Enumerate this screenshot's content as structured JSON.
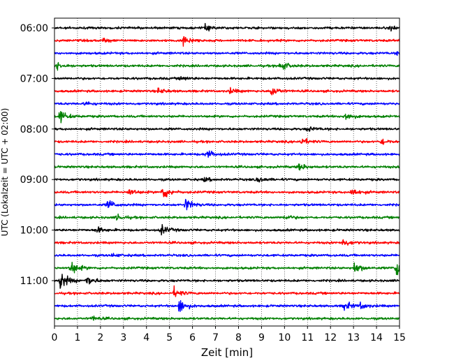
{
  "chart_data": {
    "type": "line",
    "subtype": "helicorder",
    "xlabel": "Zeit  [min]",
    "ylabel": "UTC (Lokalzeit = UTC + 02:00)",
    "xlim": [
      0,
      15
    ],
    "x_ticks": [
      0,
      1,
      2,
      3,
      4,
      5,
      6,
      7,
      8,
      9,
      10,
      11,
      12,
      13,
      14,
      15
    ],
    "x_tick_labels": [
      "0",
      "1",
      "2",
      "3",
      "4",
      "5",
      "6",
      "7",
      "8",
      "9",
      "10",
      "11",
      "12",
      "13",
      "14",
      "15"
    ],
    "y_tick_labels": [
      "06:00",
      "07:00",
      "08:00",
      "09:00",
      "10:00",
      "11:00"
    ],
    "y_tick_rows": [
      0,
      4,
      8,
      12,
      16,
      20
    ],
    "grid": "vertical dotted",
    "trace_colors": [
      "#000000",
      "#ff0000",
      "#0000ff",
      "#008000"
    ],
    "traces": [
      {
        "start": "06:00",
        "color": "#000000",
        "events": [
          {
            "t": 6.5,
            "amp": 1.0
          },
          {
            "t": 14.6,
            "amp": 0.8
          }
        ]
      },
      {
        "start": "06:15",
        "color": "#ff0000",
        "events": [
          {
            "t": 5.6,
            "amp": 1.8
          },
          {
            "t": 2.1,
            "amp": 0.6
          }
        ]
      },
      {
        "start": "06:30",
        "color": "#0000ff",
        "events": [
          {
            "t": 14.9,
            "amp": 0.8
          }
        ]
      },
      {
        "start": "06:45",
        "color": "#008000",
        "events": [
          {
            "t": 9.8,
            "amp": 1.8
          },
          {
            "t": 0.05,
            "amp": 1.2
          }
        ]
      },
      {
        "start": "07:00",
        "color": "#000000",
        "events": [
          {
            "t": 5.5,
            "amp": 0.6
          }
        ]
      },
      {
        "start": "07:15",
        "color": "#ff0000",
        "events": [
          {
            "t": 9.4,
            "amp": 1.8
          },
          {
            "t": 4.5,
            "amp": 0.8
          },
          {
            "t": 7.6,
            "amp": 0.8
          }
        ]
      },
      {
        "start": "07:30",
        "color": "#0000ff",
        "events": [
          {
            "t": 1.3,
            "amp": 0.6
          }
        ]
      },
      {
        "start": "07:45",
        "color": "#008000",
        "events": [
          {
            "t": 0.2,
            "amp": 2.0
          },
          {
            "t": 12.6,
            "amp": 1.4
          }
        ]
      },
      {
        "start": "08:00",
        "color": "#000000",
        "events": [
          {
            "t": 11.0,
            "amp": 0.8
          }
        ]
      },
      {
        "start": "08:15",
        "color": "#ff0000",
        "events": [
          {
            "t": 10.7,
            "amp": 1.2
          },
          {
            "t": 14.2,
            "amp": 1.0
          }
        ]
      },
      {
        "start": "08:30",
        "color": "#0000ff",
        "events": [
          {
            "t": 6.6,
            "amp": 1.4
          }
        ]
      },
      {
        "start": "08:45",
        "color": "#008000",
        "events": [
          {
            "t": 10.6,
            "amp": 1.2
          }
        ]
      },
      {
        "start": "09:00",
        "color": "#000000",
        "events": [
          {
            "t": 8.8,
            "amp": 1.0
          },
          {
            "t": 6.5,
            "amp": 0.6
          }
        ]
      },
      {
        "start": "09:15",
        "color": "#ff0000",
        "events": [
          {
            "t": 4.7,
            "amp": 2.2
          },
          {
            "t": 3.2,
            "amp": 1.2
          },
          {
            "t": 12.9,
            "amp": 1.4
          }
        ]
      },
      {
        "start": "09:30",
        "color": "#0000ff",
        "events": [
          {
            "t": 2.3,
            "amp": 1.6
          },
          {
            "t": 5.7,
            "amp": 1.8
          }
        ]
      },
      {
        "start": "09:45",
        "color": "#008000",
        "events": [
          {
            "t": 2.7,
            "amp": 1.0
          },
          {
            "t": 10.0,
            "amp": 0.8
          }
        ]
      },
      {
        "start": "10:00",
        "color": "#000000",
        "events": [
          {
            "t": 4.6,
            "amp": 1.6
          },
          {
            "t": 1.8,
            "amp": 1.0
          }
        ]
      },
      {
        "start": "10:15",
        "color": "#ff0000",
        "events": [
          {
            "t": 12.5,
            "amp": 1.4
          }
        ]
      },
      {
        "start": "10:30",
        "color": "#0000ff",
        "events": [
          {
            "t": 2.5,
            "amp": 0.5
          }
        ]
      },
      {
        "start": "10:45",
        "color": "#008000",
        "events": [
          {
            "t": 0.7,
            "amp": 2.4
          },
          {
            "t": 13.0,
            "amp": 2.0
          },
          {
            "t": 14.85,
            "amp": 4.2
          }
        ]
      },
      {
        "start": "11:00",
        "color": "#000000",
        "events": [
          {
            "t": 0.25,
            "amp": 3.0
          },
          {
            "t": 1.4,
            "amp": 1.6
          }
        ]
      },
      {
        "start": "11:15",
        "color": "#ff0000",
        "events": [
          {
            "t": 5.2,
            "amp": 1.4
          }
        ]
      },
      {
        "start": "11:30",
        "color": "#0000ff",
        "events": [
          {
            "t": 5.4,
            "amp": 2.4
          },
          {
            "t": 12.6,
            "amp": 1.4
          },
          {
            "t": 13.3,
            "amp": 0.9
          }
        ]
      },
      {
        "start": "11:45",
        "color": "#008000",
        "events": [
          {
            "t": 1.6,
            "amp": 0.7
          }
        ]
      }
    ]
  }
}
